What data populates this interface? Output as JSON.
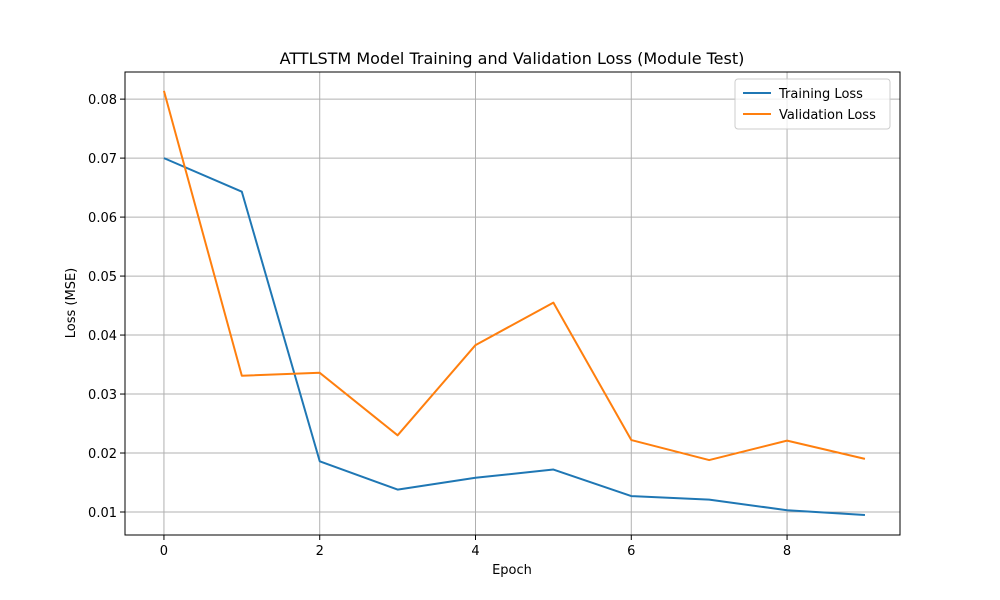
{
  "chart_data": {
    "type": "line",
    "title": "ATTLSTM Model Training and Validation Loss (Module Test)",
    "xlabel": "Epoch",
    "ylabel": "Loss (MSE)",
    "x": [
      0,
      1,
      2,
      3,
      4,
      5,
      6,
      7,
      8,
      9
    ],
    "xlim": [
      -0.5,
      9.45
    ],
    "ylim": [
      0.0061,
      0.0846
    ],
    "xticks": [
      0,
      2,
      4,
      6,
      8
    ],
    "yticks": [
      0.01,
      0.02,
      0.03,
      0.04,
      0.05,
      0.06,
      0.07,
      0.08
    ],
    "xtick_labels": [
      "0",
      "2",
      "4",
      "6",
      "8"
    ],
    "ytick_labels": [
      "0.01",
      "0.02",
      "0.03",
      "0.04",
      "0.05",
      "0.06",
      "0.07",
      "0.08"
    ],
    "grid": true,
    "legend_position": "top-right",
    "series": [
      {
        "name": "Training Loss",
        "color": "#1f77b4",
        "values": [
          0.07,
          0.0643,
          0.0186,
          0.0138,
          0.0158,
          0.0172,
          0.0127,
          0.0121,
          0.0103,
          0.0095
        ]
      },
      {
        "name": "Validation Loss",
        "color": "#ff7f0e",
        "values": [
          0.0814,
          0.0331,
          0.0336,
          0.023,
          0.0383,
          0.0455,
          0.0222,
          0.0188,
          0.0221,
          0.019
        ]
      }
    ]
  }
}
